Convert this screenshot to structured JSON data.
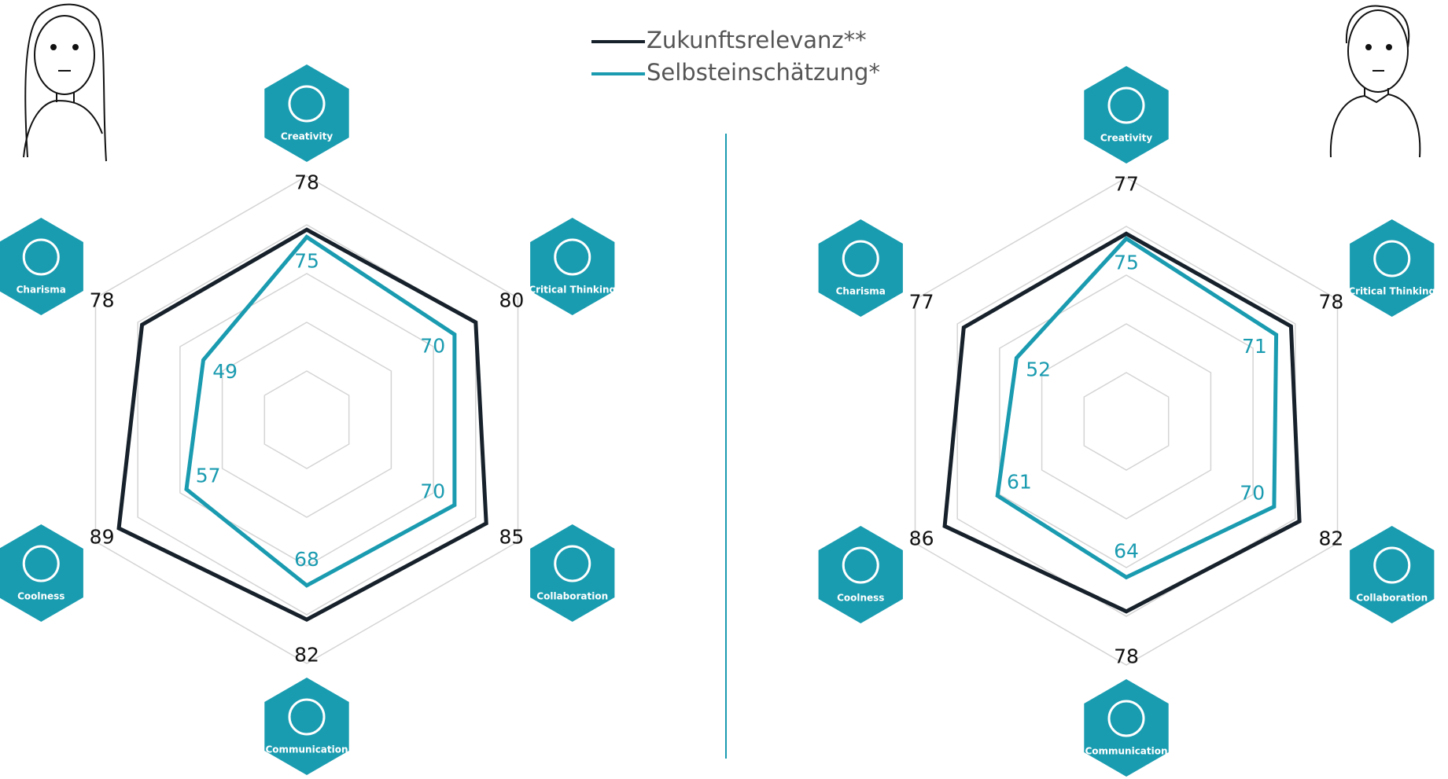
{
  "legend": {
    "entries": [
      {
        "name": "Zukunftsrelevanz**"
      },
      {
        "name": "Selbsteinschätzung*"
      }
    ]
  },
  "chart_data": [
    {
      "type": "radar",
      "categories": [
        "Creativity",
        "Critical Thinking",
        "Collaboration",
        "Communication",
        "Coolness",
        "Charisma"
      ],
      "series": [
        {
          "color": "#17212b",
          "values": [
            78,
            80,
            85,
            82,
            89,
            78
          ]
        },
        {
          "color": "#1a9bb0",
          "values": [
            75,
            70,
            70,
            68,
            57,
            49
          ]
        }
      ],
      "rlim": [
        0,
        100
      ],
      "rticks": [
        20,
        40,
        60,
        80,
        100
      ],
      "grid": true
    },
    {
      "type": "radar",
      "categories": [
        "Creativity",
        "Critical Thinking",
        "Collaboration",
        "Communication",
        "Coolness",
        "Charisma"
      ],
      "series": [
        {
          "color": "#17212b",
          "values": [
            77,
            78,
            82,
            78,
            86,
            77
          ]
        },
        {
          "color": "#1a9bb0",
          "values": [
            75,
            71,
            70,
            64,
            61,
            52
          ]
        }
      ],
      "rlim": [
        0,
        100
      ],
      "rticks": [
        20,
        40,
        60,
        80,
        100
      ],
      "grid": true
    }
  ]
}
